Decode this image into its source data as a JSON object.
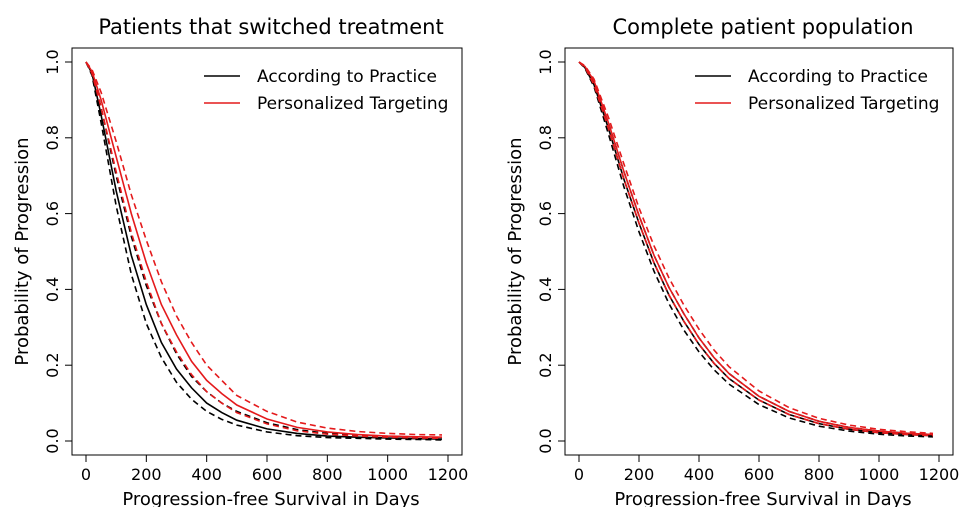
{
  "chart_data": [
    {
      "type": "line",
      "title": "Patients that switched treatment",
      "xlabel": "Progression-free Survival in Days",
      "ylabel": "Probability of Progression",
      "xlim": [
        0,
        1200
      ],
      "ylim": [
        0,
        1
      ],
      "xticks": [
        "0",
        "200",
        "400",
        "600",
        "800",
        "1000",
        "1200"
      ],
      "yticks": [
        "0.0",
        "0.2",
        "0.4",
        "0.6",
        "0.8",
        "1.0"
      ],
      "grid": false,
      "legend_position": "top-right",
      "legend": [
        "According to Practice",
        "Personalized Targeting"
      ],
      "colors": {
        "According to Practice": "#000000",
        "Personalized Targeting": "#e41a1c"
      },
      "x": [
        0,
        20,
        50,
        100,
        150,
        200,
        250,
        300,
        350,
        400,
        450,
        500,
        600,
        700,
        800,
        900,
        1000,
        1100,
        1180
      ],
      "series": [
        {
          "name": "According to Practice",
          "band": "estimate",
          "values": [
            1.0,
            0.97,
            0.86,
            0.66,
            0.49,
            0.36,
            0.26,
            0.19,
            0.14,
            0.1,
            0.075,
            0.055,
            0.032,
            0.02,
            0.013,
            0.01,
            0.008,
            0.006,
            0.005
          ]
        },
        {
          "name": "According to Practice",
          "band": "upper",
          "values": [
            1.0,
            0.975,
            0.88,
            0.7,
            0.54,
            0.41,
            0.31,
            0.23,
            0.17,
            0.13,
            0.1,
            0.078,
            0.048,
            0.03,
            0.02,
            0.015,
            0.012,
            0.01,
            0.009
          ]
        },
        {
          "name": "According to Practice",
          "band": "lower",
          "values": [
            1.0,
            0.965,
            0.84,
            0.62,
            0.44,
            0.31,
            0.22,
            0.155,
            0.11,
            0.078,
            0.057,
            0.042,
            0.024,
            0.014,
            0.009,
            0.007,
            0.005,
            0.004,
            0.003
          ]
        },
        {
          "name": "Personalized Targeting",
          "band": "estimate",
          "values": [
            1.0,
            0.975,
            0.9,
            0.75,
            0.6,
            0.47,
            0.36,
            0.28,
            0.21,
            0.16,
            0.125,
            0.095,
            0.058,
            0.036,
            0.024,
            0.017,
            0.013,
            0.011,
            0.01
          ]
        },
        {
          "name": "Personalized Targeting",
          "band": "upper",
          "values": [
            1.0,
            0.98,
            0.92,
            0.79,
            0.65,
            0.53,
            0.42,
            0.33,
            0.26,
            0.2,
            0.16,
            0.12,
            0.078,
            0.05,
            0.034,
            0.025,
            0.02,
            0.017,
            0.016
          ]
        },
        {
          "name": "Personalized Targeting",
          "band": "lower",
          "values": [
            1.0,
            0.97,
            0.88,
            0.71,
            0.55,
            0.42,
            0.31,
            0.235,
            0.175,
            0.13,
            0.1,
            0.075,
            0.045,
            0.027,
            0.018,
            0.013,
            0.01,
            0.008,
            0.007
          ]
        }
      ]
    },
    {
      "type": "line",
      "title": "Complete patient population",
      "xlabel": "Progression-free Survival in Days",
      "ylabel": "Probability of Progression",
      "xlim": [
        0,
        1200
      ],
      "ylim": [
        0,
        1
      ],
      "xticks": [
        "0",
        "200",
        "400",
        "600",
        "800",
        "1000",
        "1200"
      ],
      "yticks": [
        "0.0",
        "0.2",
        "0.4",
        "0.6",
        "0.8",
        "1.0"
      ],
      "grid": false,
      "legend_position": "top-right",
      "legend": [
        "According to Practice",
        "Personalized Targeting"
      ],
      "colors": {
        "According to Practice": "#000000",
        "Personalized Targeting": "#e41a1c"
      },
      "x": [
        0,
        20,
        50,
        100,
        150,
        200,
        250,
        300,
        350,
        400,
        450,
        500,
        600,
        700,
        800,
        900,
        1000,
        1100,
        1180
      ],
      "series": [
        {
          "name": "According to Practice",
          "band": "estimate",
          "values": [
            1.0,
            0.985,
            0.94,
            0.82,
            0.69,
            0.575,
            0.47,
            0.385,
            0.315,
            0.255,
            0.205,
            0.165,
            0.108,
            0.07,
            0.046,
            0.031,
            0.022,
            0.017,
            0.014
          ]
        },
        {
          "name": "According to Practice",
          "band": "upper",
          "values": [
            1.0,
            0.987,
            0.945,
            0.835,
            0.71,
            0.595,
            0.49,
            0.405,
            0.335,
            0.272,
            0.22,
            0.178,
            0.118,
            0.078,
            0.052,
            0.036,
            0.026,
            0.02,
            0.017
          ]
        },
        {
          "name": "According to Practice",
          "band": "lower",
          "values": [
            1.0,
            0.983,
            0.935,
            0.805,
            0.67,
            0.552,
            0.448,
            0.362,
            0.292,
            0.235,
            0.188,
            0.15,
            0.096,
            0.061,
            0.039,
            0.026,
            0.018,
            0.013,
            0.011
          ]
        },
        {
          "name": "Personalized Targeting",
          "band": "estimate",
          "values": [
            1.0,
            0.988,
            0.95,
            0.835,
            0.71,
            0.595,
            0.49,
            0.405,
            0.335,
            0.272,
            0.22,
            0.178,
            0.118,
            0.078,
            0.052,
            0.036,
            0.026,
            0.02,
            0.017
          ]
        },
        {
          "name": "Personalized Targeting",
          "band": "upper",
          "values": [
            1.0,
            0.99,
            0.955,
            0.85,
            0.73,
            0.615,
            0.515,
            0.43,
            0.358,
            0.295,
            0.24,
            0.196,
            0.132,
            0.088,
            0.06,
            0.042,
            0.031,
            0.024,
            0.02
          ]
        },
        {
          "name": "Personalized Targeting",
          "band": "lower",
          "values": [
            1.0,
            0.986,
            0.94,
            0.82,
            0.69,
            0.575,
            0.47,
            0.385,
            0.315,
            0.255,
            0.205,
            0.165,
            0.108,
            0.07,
            0.046,
            0.031,
            0.022,
            0.017,
            0.014
          ]
        }
      ]
    }
  ]
}
